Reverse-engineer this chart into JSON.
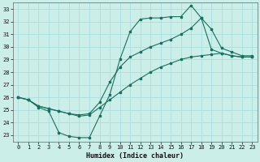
{
  "xlabel": "Humidex (Indice chaleur)",
  "bg_color": "#cceee8",
  "grid_color": "#aadddd",
  "line_color": "#1a7060",
  "xlim": [
    -0.5,
    23.5
  ],
  "ylim": [
    22.5,
    33.5
  ],
  "xticks": [
    0,
    1,
    2,
    3,
    4,
    5,
    6,
    7,
    8,
    9,
    10,
    11,
    12,
    13,
    14,
    15,
    16,
    17,
    18,
    19,
    20,
    21,
    22,
    23
  ],
  "yticks": [
    23,
    24,
    25,
    26,
    27,
    28,
    29,
    30,
    31,
    32,
    33
  ],
  "line1_x": [
    0,
    1,
    2,
    3,
    4,
    5,
    6,
    7,
    8,
    9,
    10,
    11,
    12,
    13,
    14,
    15,
    16,
    17,
    18,
    19,
    20,
    21,
    22,
    23
  ],
  "line1_y": [
    26.0,
    25.8,
    25.2,
    24.9,
    23.2,
    22.9,
    22.8,
    22.8,
    24.5,
    26.2,
    29.0,
    31.2,
    32.2,
    32.3,
    32.3,
    32.4,
    32.4,
    33.3,
    32.3,
    29.8,
    29.5,
    29.3,
    29.2,
    29.2
  ],
  "line2_x": [
    0,
    1,
    2,
    3,
    4,
    5,
    6,
    7,
    8,
    9,
    10,
    11,
    12,
    13,
    14,
    15,
    16,
    17,
    18,
    19,
    20,
    21,
    22,
    23
  ],
  "line2_y": [
    26.0,
    25.8,
    25.3,
    25.1,
    24.9,
    24.7,
    24.5,
    24.6,
    25.2,
    25.8,
    26.4,
    27.0,
    27.5,
    28.0,
    28.4,
    28.7,
    29.0,
    29.2,
    29.3,
    29.4,
    29.5,
    29.3,
    29.2,
    29.2
  ],
  "line3_x": [
    0,
    1,
    2,
    3,
    4,
    5,
    6,
    7,
    8,
    9,
    10,
    11,
    12,
    13,
    14,
    15,
    16,
    17,
    18,
    19,
    20,
    21,
    22,
    23
  ],
  "line3_y": [
    26.0,
    25.8,
    25.3,
    25.1,
    24.9,
    24.7,
    24.6,
    24.7,
    25.6,
    27.2,
    28.4,
    29.2,
    29.6,
    30.0,
    30.3,
    30.6,
    31.0,
    31.5,
    32.3,
    31.4,
    29.9,
    29.6,
    29.3,
    29.3
  ]
}
